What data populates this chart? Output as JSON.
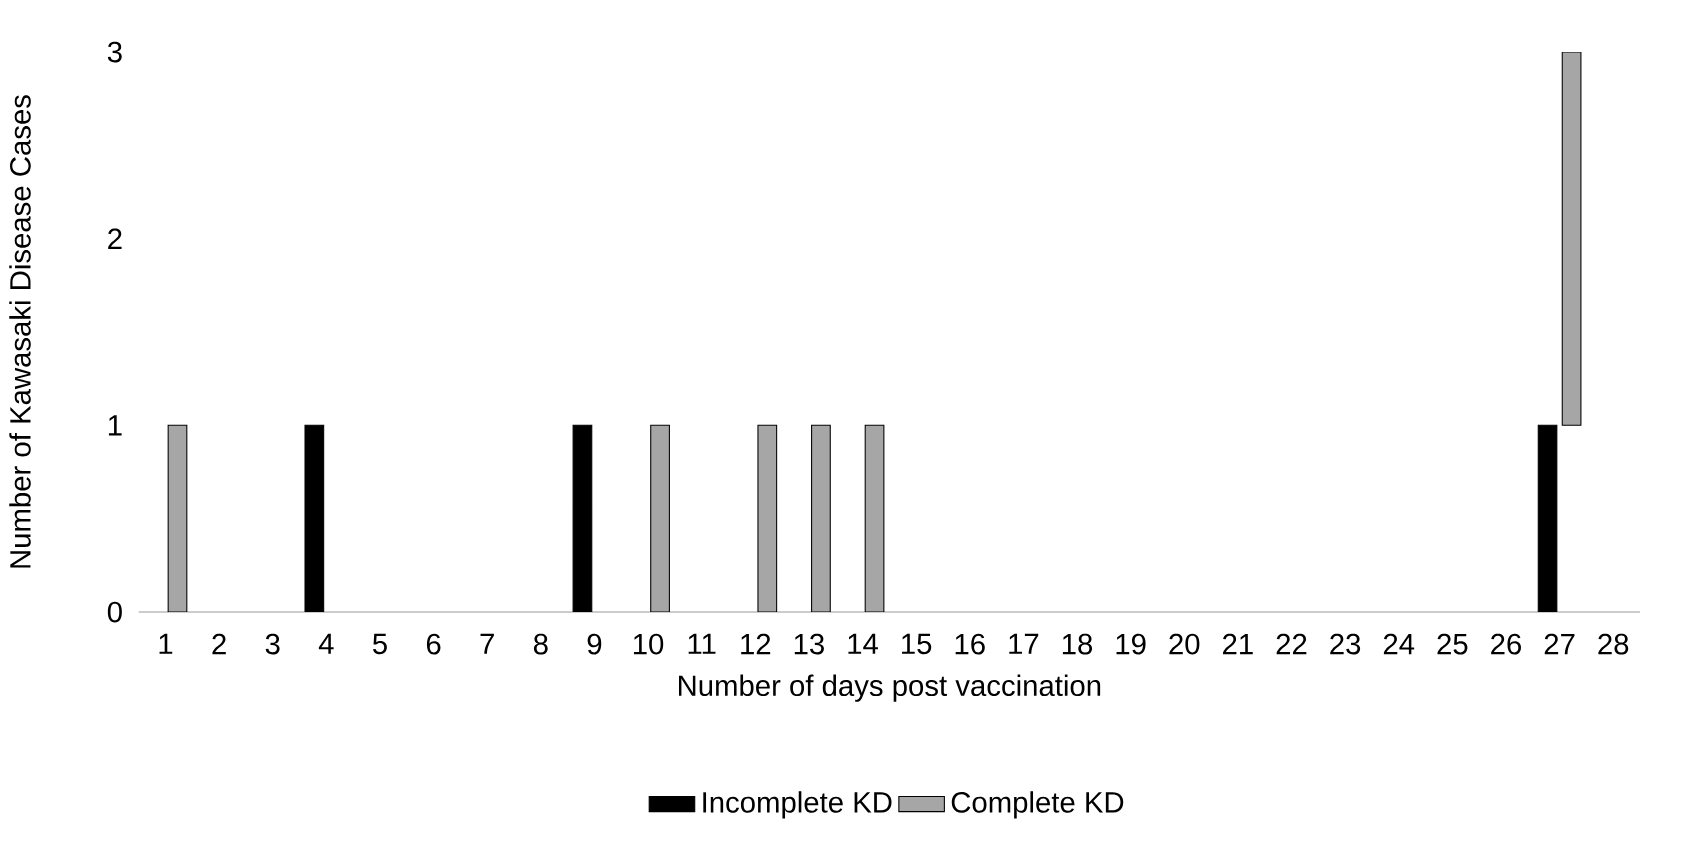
{
  "chart_data": {
    "type": "bar",
    "stacked": true,
    "xlabel": "Number of days post vaccination",
    "ylabel": "Number of Kawasaki Disease Cases",
    "categories": [
      "1",
      "2",
      "3",
      "4",
      "5",
      "6",
      "7",
      "8",
      "9",
      "10",
      "11",
      "12",
      "13",
      "14",
      "15",
      "16",
      "17",
      "18",
      "19",
      "20",
      "21",
      "22",
      "23",
      "24",
      "25",
      "26",
      "27",
      "28"
    ],
    "series": [
      {
        "name": "Incomplete KD",
        "color": "#000000",
        "values": [
          0,
          0,
          0,
          1,
          0,
          0,
          0,
          0,
          1,
          0,
          0,
          0,
          0,
          0,
          0,
          0,
          0,
          0,
          0,
          0,
          0,
          0,
          0,
          0,
          0,
          0,
          1,
          0
        ]
      },
      {
        "name": "Complete KD",
        "color": "#a6a6a6",
        "values": [
          1,
          0,
          0,
          0,
          0,
          0,
          0,
          0,
          0,
          1,
          0,
          1,
          1,
          1,
          0,
          0,
          0,
          0,
          0,
          0,
          0,
          0,
          0,
          0,
          0,
          0,
          2,
          0
        ]
      }
    ],
    "ylim": [
      0,
      3
    ],
    "yticks": [
      0,
      1,
      2,
      3
    ],
    "grid": false,
    "legend": "bottom"
  }
}
